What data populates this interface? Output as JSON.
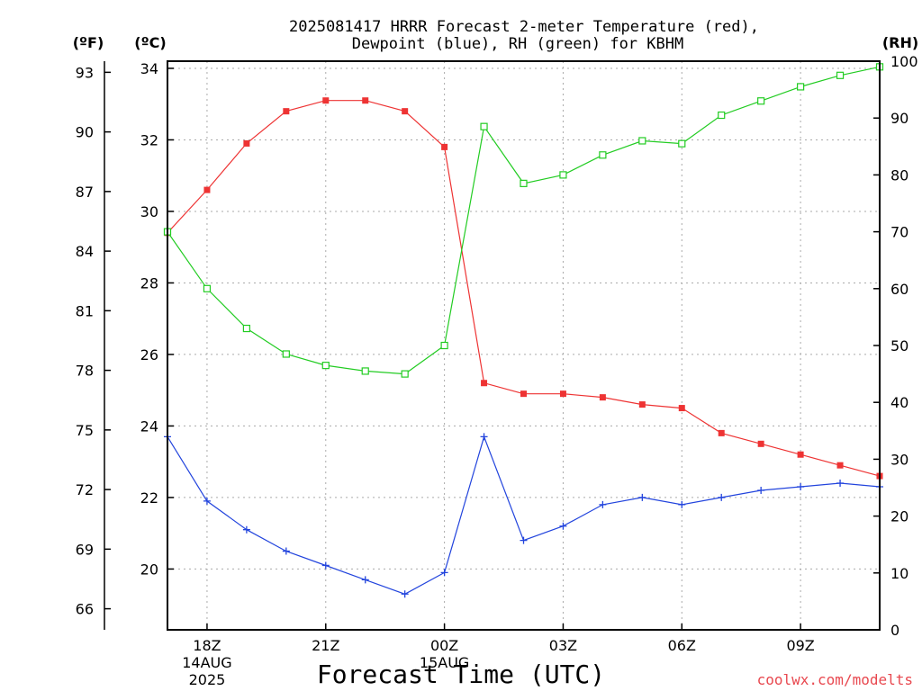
{
  "chart_data": {
    "type": "line",
    "title_lines": [
      "2025081417 HRRR Forecast 2-meter Temperature (red),",
      "Dewpoint (blue), RH (green) for KBHM"
    ],
    "xlabel": "Forecast Time (UTC)",
    "credit": "coolwx.com/modelts",
    "unit_labels": {
      "fahrenheit": "(ºF)",
      "celsius": "(ºC)",
      "rh": "(RH)"
    },
    "x_hours_utc": [
      17,
      18,
      19,
      20,
      21,
      22,
      23,
      24,
      25,
      26,
      27,
      28,
      29,
      30,
      31,
      32,
      33,
      34,
      35
    ],
    "xlim": [
      17,
      35
    ],
    "x_ticks": [
      {
        "hour": 18,
        "label": "18Z",
        "date": "14AUG",
        "year": "2025"
      },
      {
        "hour": 21,
        "label": "21Z"
      },
      {
        "hour": 24,
        "label": "00Z",
        "date": "15AUG"
      },
      {
        "hour": 27,
        "label": "03Z"
      },
      {
        "hour": 30,
        "label": "06Z"
      },
      {
        "hour": 33,
        "label": "09Z"
      }
    ],
    "celsius_axis": {
      "ylim": [
        18.3,
        34.2
      ],
      "ticks": [
        "34",
        "32",
        "30",
        "28",
        "26",
        "24",
        "22",
        "20"
      ],
      "tick_values": [
        34,
        32,
        30,
        28,
        26,
        24,
        22,
        20
      ]
    },
    "fahrenheit_axis": {
      "ticks": [
        "93",
        "90",
        "87",
        "84",
        "81",
        "78",
        "75",
        "72",
        "69",
        "66"
      ],
      "tick_values": [
        93,
        90,
        87,
        84,
        81,
        78,
        75,
        72,
        69,
        66
      ]
    },
    "rh_axis": {
      "ylim": [
        0,
        100
      ],
      "ticks": [
        "100",
        "90",
        "80",
        "70",
        "60",
        "50",
        "40",
        "30",
        "20",
        "10",
        "0"
      ],
      "tick_values": [
        100,
        90,
        80,
        70,
        60,
        50,
        40,
        30,
        20,
        10,
        0
      ]
    },
    "grid": true,
    "series": [
      {
        "key": "temperature",
        "axis": "celsius",
        "color": "#ee3333",
        "marker": "filled-square",
        "values": [
          29.4,
          30.6,
          31.9,
          32.8,
          33.1,
          33.1,
          32.8,
          31.8,
          25.2,
          24.9,
          24.9,
          24.8,
          24.6,
          24.5,
          23.8,
          23.5,
          23.2,
          22.9,
          22.6
        ]
      },
      {
        "key": "dewpoint",
        "axis": "celsius",
        "color": "#2244dd",
        "marker": "plus",
        "values": [
          23.7,
          21.9,
          21.1,
          20.5,
          20.1,
          19.7,
          19.3,
          19.9,
          23.7,
          20.8,
          21.2,
          21.8,
          22.0,
          21.8,
          22.0,
          22.2,
          22.3,
          22.4,
          22.3
        ]
      },
      {
        "key": "rh",
        "axis": "rh",
        "color": "#22cc22",
        "marker": "open-square",
        "values": [
          70,
          60,
          53,
          48.5,
          46.5,
          45.5,
          45,
          50,
          88.5,
          78.5,
          80,
          83.5,
          86,
          85.5,
          90.5,
          93,
          95.5,
          97.5,
          99
        ]
      }
    ]
  }
}
